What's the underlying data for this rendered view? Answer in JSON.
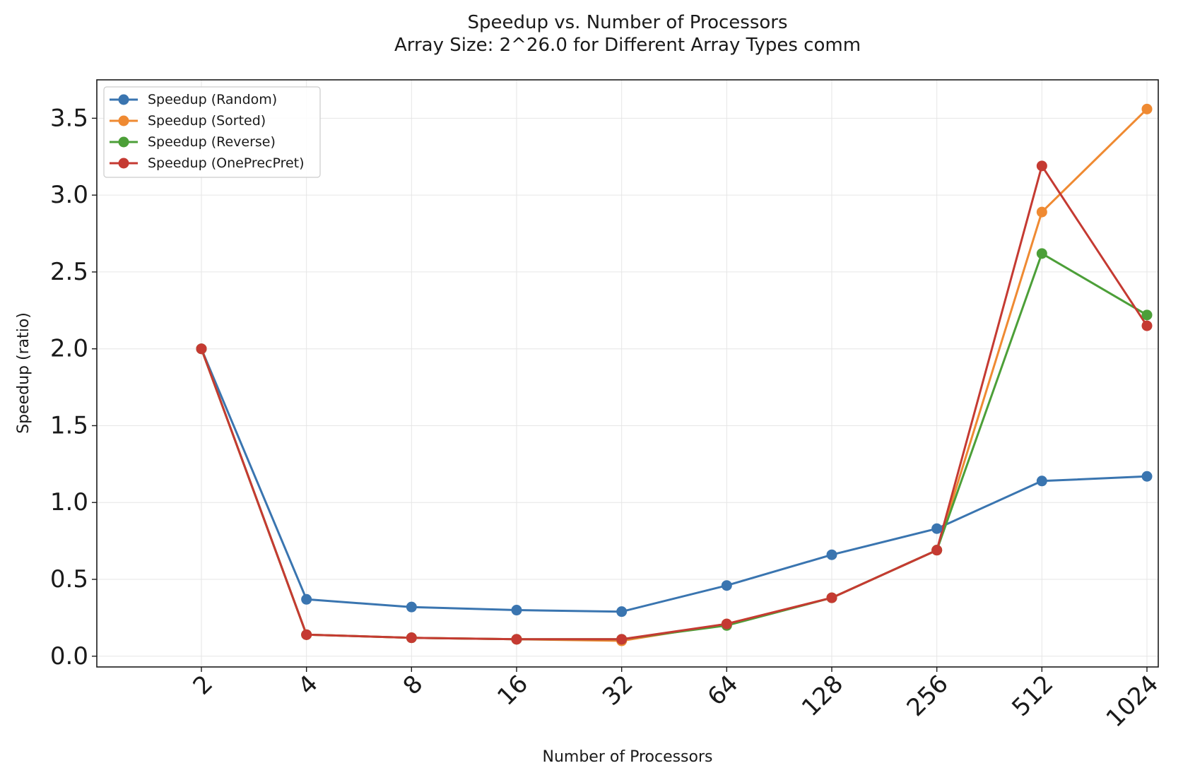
{
  "chart_data": {
    "type": "line",
    "title": "Speedup vs. Number of Processors",
    "subtitle": "Array Size: 2^26.0 for Different Array Types comm",
    "xlabel": "Number of Processors",
    "ylabel": "Speedup (ratio)",
    "x_scale": "log2",
    "x": [
      2,
      4,
      8,
      16,
      32,
      64,
      128,
      256,
      512,
      1024
    ],
    "x_tick_labels": [
      "2",
      "4",
      "8",
      "16",
      "32",
      "64",
      "128",
      "256",
      "512",
      "1024"
    ],
    "ylim": [
      -0.07,
      3.75
    ],
    "y_ticks": [
      0.0,
      0.5,
      1.0,
      1.5,
      2.0,
      2.5,
      3.0,
      3.5
    ],
    "y_tick_labels": [
      "0.0",
      "0.5",
      "1.0",
      "1.5",
      "2.0",
      "2.5",
      "3.0",
      "3.5"
    ],
    "grid": true,
    "legend_position": "top-left",
    "series": [
      {
        "name": "Speedup (Random)",
        "color": "#3a75b0",
        "values": [
          2.0,
          0.37,
          0.32,
          0.3,
          0.29,
          0.46,
          0.66,
          0.83,
          1.14,
          1.17
        ]
      },
      {
        "name": "Speedup (Sorted)",
        "color": "#ef8a32",
        "values": [
          2.0,
          0.14,
          0.12,
          0.11,
          0.1,
          0.21,
          0.38,
          0.69,
          2.89,
          3.56
        ]
      },
      {
        "name": "Speedup (Reverse)",
        "color": "#4c9f38",
        "values": [
          2.0,
          0.14,
          0.12,
          0.11,
          0.11,
          0.2,
          0.38,
          0.69,
          2.62,
          2.22
        ]
      },
      {
        "name": "Speedup (OnePrecPret)",
        "color": "#c53a32",
        "values": [
          2.0,
          0.14,
          0.12,
          0.11,
          0.11,
          0.21,
          0.38,
          0.69,
          3.19,
          2.15
        ]
      }
    ]
  }
}
